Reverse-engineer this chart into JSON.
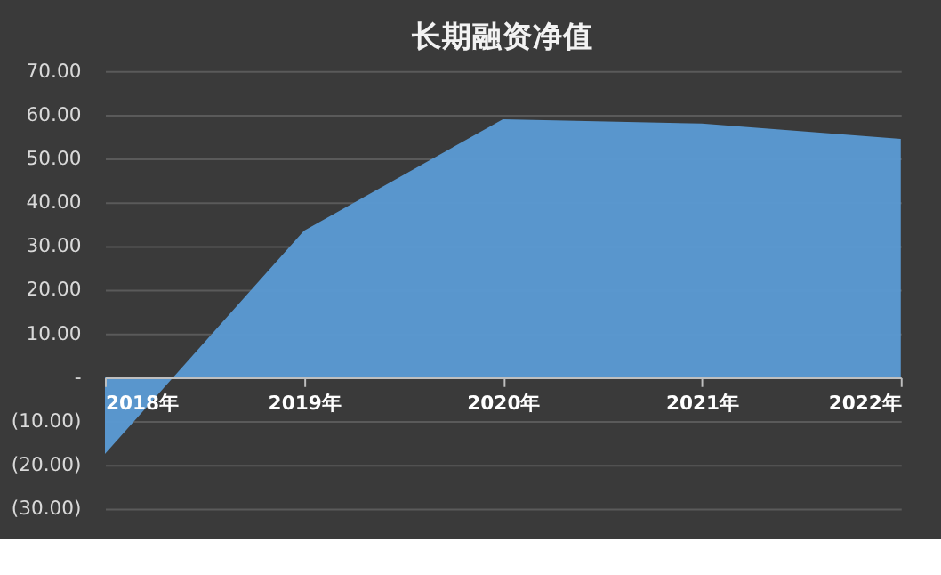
{
  "chart_data": {
    "type": "area",
    "title": "长期融资净值",
    "categories": [
      "2018年",
      "2019年",
      "2020年",
      "2021年",
      "2022年"
    ],
    "series": [
      {
        "color": "#5b9bd5",
        "values": [
          -17.5,
          33.5,
          59,
          58,
          54.5
        ]
      }
    ],
    "ylim": [
      -30,
      70
    ],
    "yticks": [
      {
        "value": -30,
        "label": "(30.00)"
      },
      {
        "value": -20,
        "label": "(20.00)"
      },
      {
        "value": -10,
        "label": "(10.00)"
      },
      {
        "value": 0,
        "label": "-"
      },
      {
        "value": 10,
        "label": "10.00"
      },
      {
        "value": 20,
        "label": "20.00"
      },
      {
        "value": 30,
        "label": "30.00"
      },
      {
        "value": 40,
        "label": "40.00"
      },
      {
        "value": 50,
        "label": "50.00"
      },
      {
        "value": 60,
        "label": "60.00"
      },
      {
        "value": 70,
        "label": "70.00"
      }
    ],
    "grid": "y"
  }
}
